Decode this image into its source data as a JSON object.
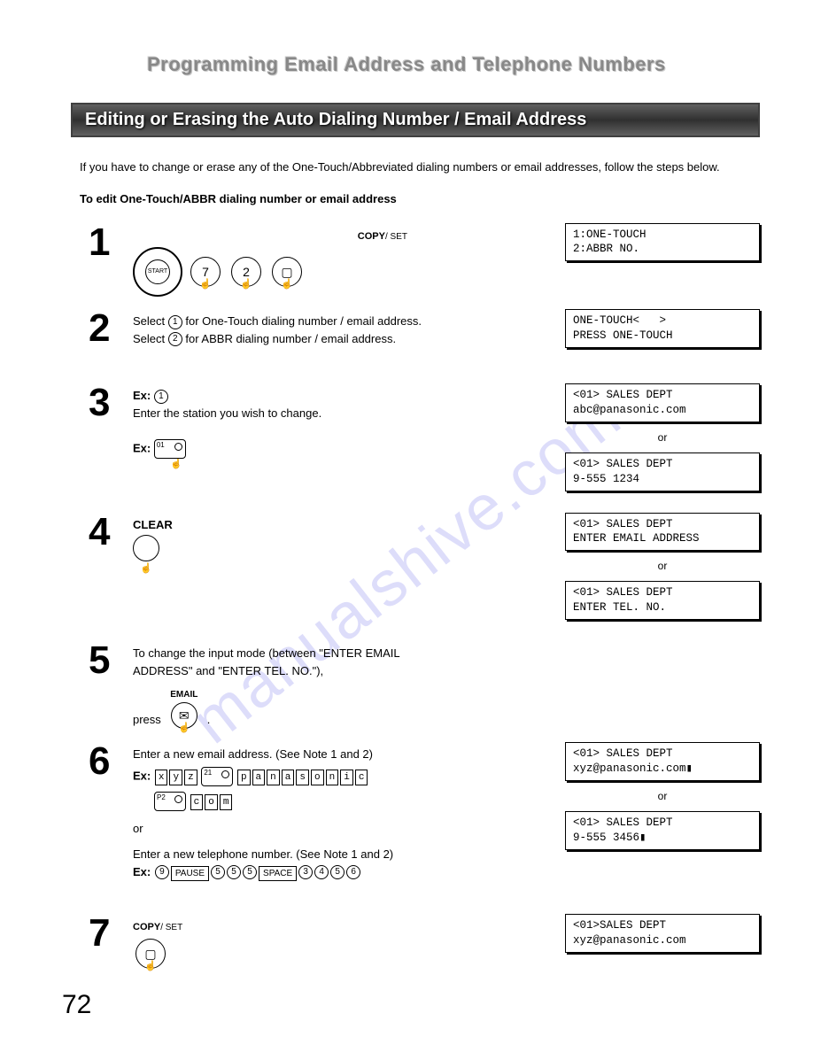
{
  "page": {
    "title": "Programming Email Address and Telephone Numbers",
    "section_header": "Editing or Erasing the Auto Dialing Number / Email Address",
    "intro": "If you have to change or erase any of the One-Touch/Abbreviated dialing numbers or email addresses, follow the steps below.",
    "subhead": "To edit One-Touch/ABBR dialing number or email address",
    "page_number": "72",
    "watermark": "manualshive.com"
  },
  "steps": {
    "s1": {
      "copy_label": "COPY",
      "copy_set": "/ SET",
      "key_a": "7",
      "key_b": "2",
      "start": "START"
    },
    "s2": {
      "line1a": "Select ",
      "line1b": " for One-Touch dialing number / email address.",
      "line2a": "Select ",
      "line2b": " for ABBR dialing number / email address.",
      "opt1": "1",
      "opt2": "2"
    },
    "s3": {
      "ex_label": "Ex:",
      "opt": "1",
      "text": "Enter the station you wish to change.",
      "ex2_label": "Ex:",
      "btn": "01"
    },
    "s4": {
      "label": "CLEAR"
    },
    "s5": {
      "text": "To change the input mode (between \"ENTER EMAIL ADDRESS\" and \"ENTER TEL. NO.\"),",
      "press": "press",
      "email_label": "EMAIL",
      "dot": "."
    },
    "s6": {
      "text1": "Enter a new email address.  (See Note 1 and 2)",
      "ex_label": "Ex:",
      "chars1": [
        "x",
        "y",
        "z"
      ],
      "btn21": "21",
      "chars2": [
        "p",
        "a",
        "n",
        "a",
        "s",
        "o",
        "n",
        "i",
        "c"
      ],
      "btnp2": "P2",
      "chars3": [
        "c",
        "o",
        "m"
      ],
      "or": "or",
      "text2": "Enter a new telephone number.  (See Note 1 and 2)",
      "ex2_label": "Ex:",
      "seq": [
        "9",
        "PAUSE",
        "5",
        "5",
        "5",
        "SPACE",
        "3",
        "4",
        "5",
        "6"
      ]
    },
    "s7": {
      "copy_label": "COPY",
      "copy_set": "/ SET"
    }
  },
  "lcd": {
    "d1": "1:ONE-TOUCH\n2:ABBR NO.",
    "d2": "ONE-TOUCH<   >\nPRESS ONE-TOUCH",
    "d3a": "<01> SALES DEPT\nabc@panasonic.com",
    "or": "or",
    "d3b": "<01> SALES DEPT\n9-555 1234",
    "d4a": "<01> SALES DEPT\nENTER EMAIL ADDRESS",
    "d4b": "<01> SALES DEPT\nENTER TEL. NO.",
    "d6a": "<01> SALES DEPT\nxyz@panasonic.com▮",
    "d6b": "<01> SALES DEPT\n9-555 3456▮",
    "d7": "<01>SALES DEPT\nxyz@panasonic.com"
  }
}
